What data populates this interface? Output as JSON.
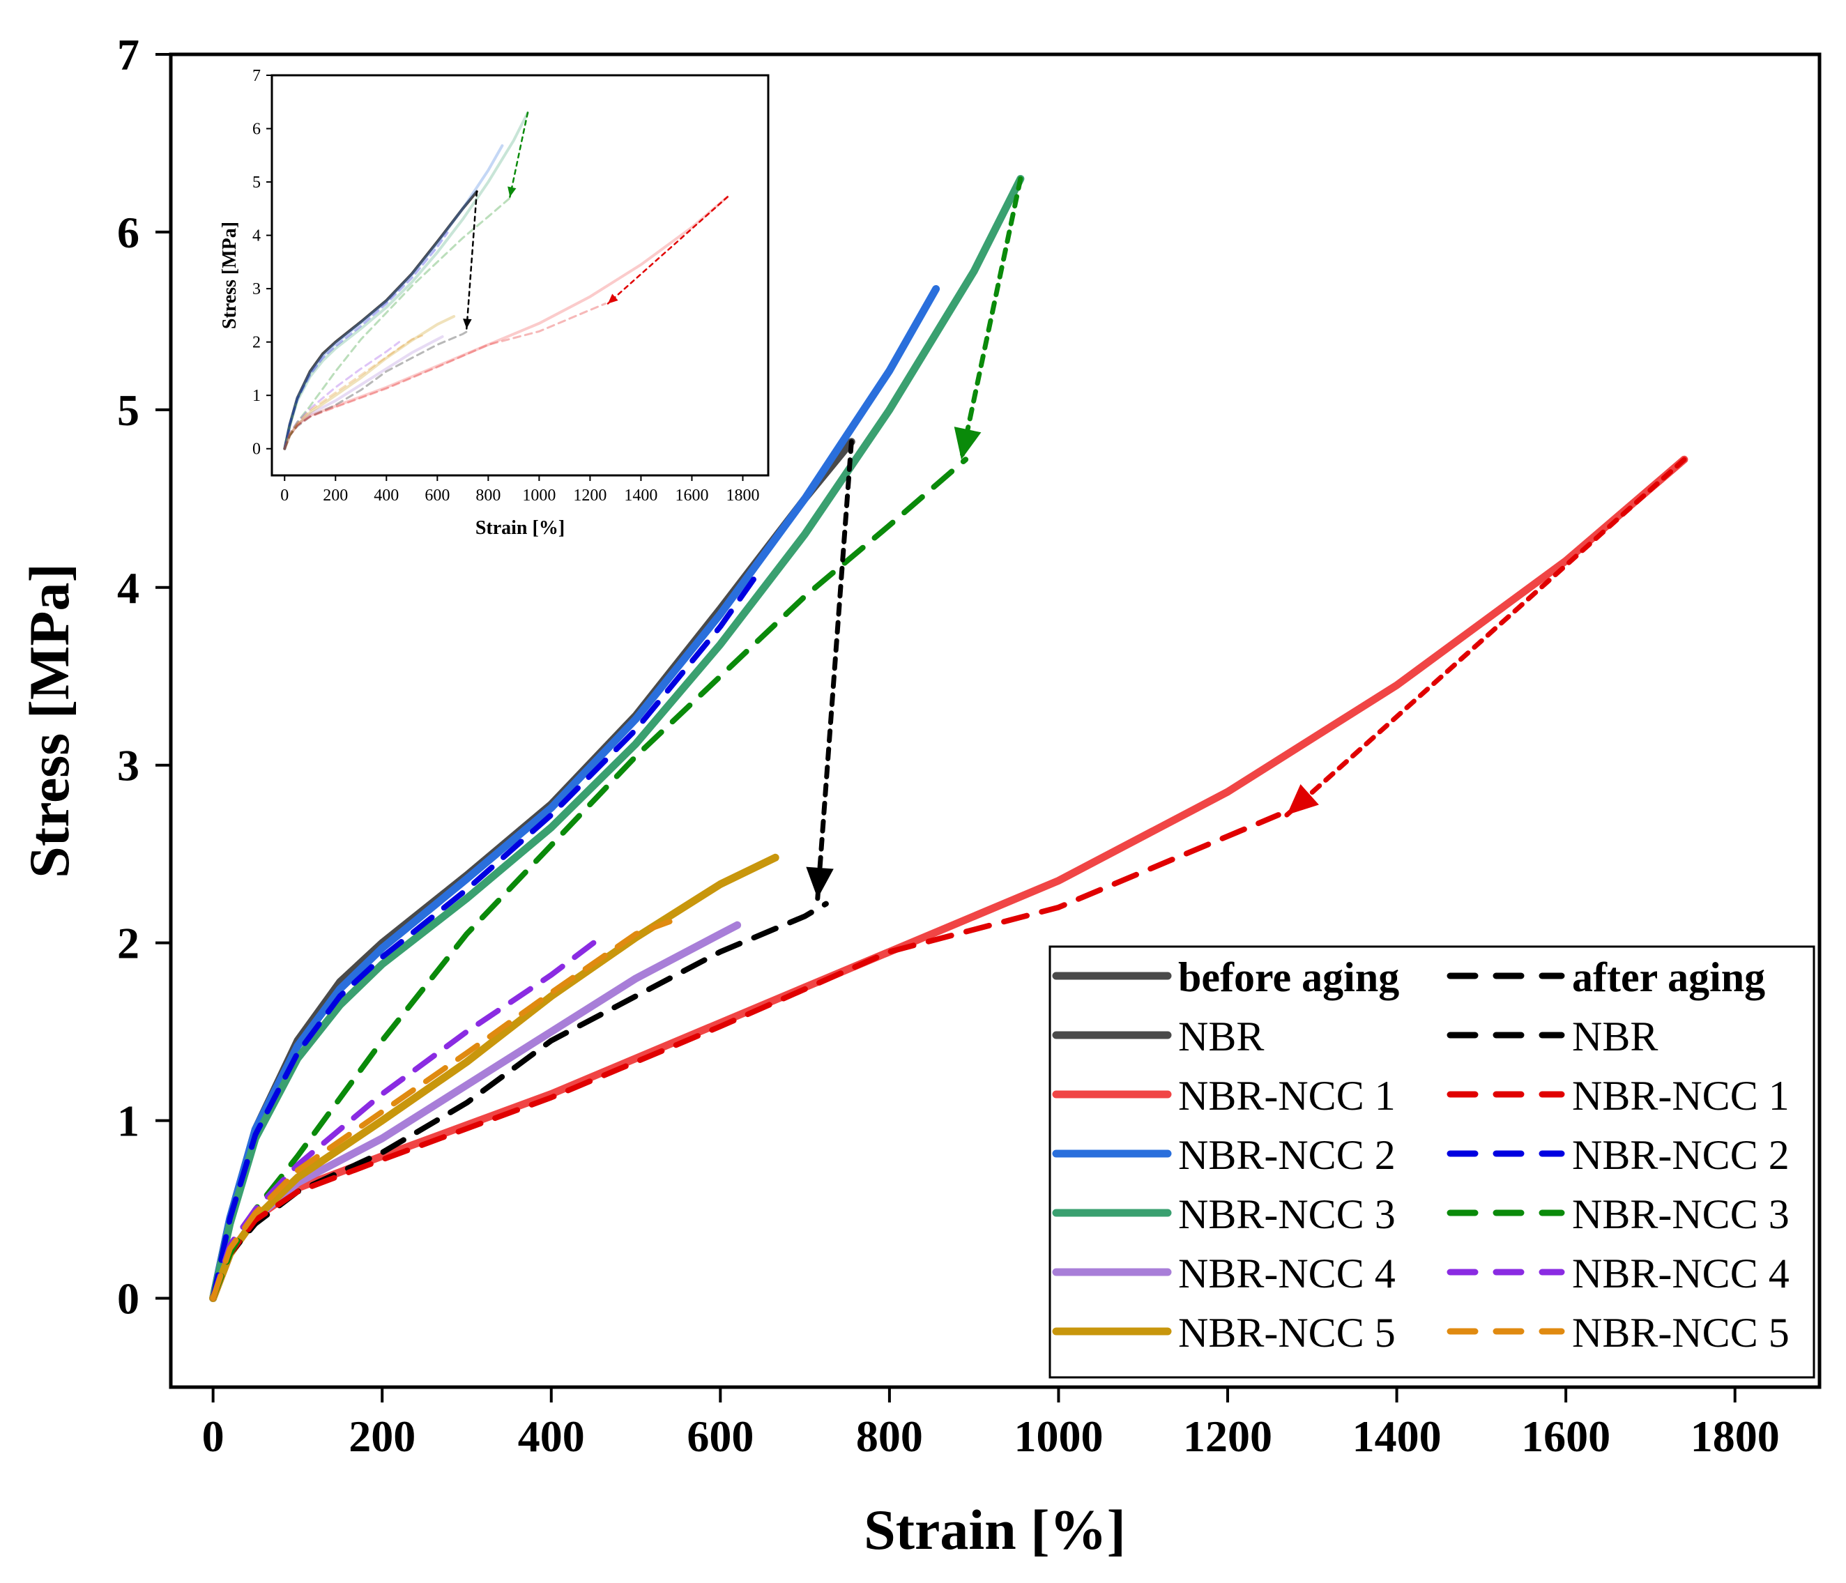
{
  "chart_data": {
    "type": "line",
    "xlabel": "Strain [%]",
    "ylabel": "Stress [MPa]",
    "xlim": [
      -50,
      1900
    ],
    "ylim": [
      -0.5,
      7
    ],
    "xticks": [
      "0",
      "200",
      "400",
      "600",
      "800",
      "1000",
      "1200",
      "1400",
      "1600",
      "1800"
    ],
    "yticks": [
      "0",
      "1",
      "2",
      "3",
      "4",
      "5",
      "6",
      "7"
    ],
    "colors": {
      "NBR_before": "#4a4a4a",
      "NBR_after": "#000000",
      "NCC1_before": "#f04545",
      "NCC1_after": "#e00000",
      "NCC2_before": "#2a6fdc",
      "NCC2_after": "#0000e0",
      "NCC3_before": "#3aa070",
      "NCC3_after": "#0a8a0a",
      "NCC4_before": "#a87ed8",
      "NCC4_after": "#8a2be2",
      "NCC5_before": "#c8960c",
      "NCC5_after": "#e08a10"
    },
    "legend": {
      "placement": "bottom-right",
      "col1_header": "before aging",
      "col2_header": "after aging",
      "col1_items": [
        "NBR",
        "NBR-NCC 1",
        "NBR-NCC 2",
        "NBR-NCC 3",
        "NBR-NCC 4",
        "NBR-NCC 5"
      ],
      "col2_items": [
        "NBR",
        "NBR-NCC 1",
        "NBR-NCC 2",
        "NBR-NCC 3",
        "NBR-NCC 4",
        "NBR-NCC 5"
      ]
    },
    "series": [
      {
        "name": "NBR before aging",
        "key": "NBR_before",
        "style": "solid",
        "x": [
          0,
          20,
          50,
          100,
          150,
          200,
          300,
          400,
          500,
          600,
          700,
          755
        ],
        "y": [
          0,
          0.45,
          0.95,
          1.45,
          1.78,
          2.0,
          2.38,
          2.78,
          3.28,
          3.88,
          4.5,
          4.82
        ]
      },
      {
        "name": "NBR-NCC 1 before aging",
        "key": "NCC1_before",
        "style": "solid",
        "x": [
          0,
          20,
          50,
          100,
          200,
          400,
          600,
          800,
          1000,
          1200,
          1400,
          1600,
          1740
        ],
        "y": [
          0,
          0.25,
          0.45,
          0.62,
          0.8,
          1.15,
          1.55,
          1.95,
          2.35,
          2.85,
          3.45,
          4.15,
          4.72
        ]
      },
      {
        "name": "NBR-NCC 2 before aging",
        "key": "NCC2_before",
        "style": "solid",
        "x": [
          0,
          20,
          50,
          100,
          150,
          200,
          300,
          400,
          500,
          600,
          700,
          800,
          855
        ],
        "y": [
          0,
          0.45,
          0.95,
          1.42,
          1.74,
          1.97,
          2.36,
          2.76,
          3.26,
          3.85,
          4.5,
          5.22,
          5.68
        ]
      },
      {
        "name": "NBR-NCC 3 before aging",
        "key": "NCC3_before",
        "style": "solid",
        "x": [
          0,
          20,
          50,
          100,
          150,
          200,
          300,
          400,
          500,
          600,
          700,
          800,
          900,
          955
        ],
        "y": [
          0,
          0.42,
          0.9,
          1.35,
          1.65,
          1.88,
          2.25,
          2.65,
          3.12,
          3.68,
          4.3,
          5.0,
          5.78,
          6.3
        ]
      },
      {
        "name": "NBR-NCC 4 before aging",
        "key": "NCC4_before",
        "style": "solid",
        "x": [
          0,
          20,
          50,
          100,
          200,
          300,
          400,
          500,
          600,
          620
        ],
        "y": [
          0,
          0.25,
          0.45,
          0.65,
          0.9,
          1.2,
          1.5,
          1.8,
          2.05,
          2.1
        ]
      },
      {
        "name": "NBR-NCC 5 before aging",
        "key": "NCC5_before",
        "style": "solid",
        "x": [
          0,
          20,
          50,
          100,
          200,
          300,
          400,
          500,
          600,
          665
        ],
        "y": [
          0,
          0.25,
          0.45,
          0.68,
          1.0,
          1.33,
          1.7,
          2.03,
          2.33,
          2.48
        ]
      },
      {
        "name": "NBR after aging",
        "key": "NBR_after",
        "style": "dashed",
        "x": [
          0,
          20,
          50,
          100,
          200,
          300,
          400,
          500,
          600,
          700,
          725
        ],
        "y": [
          0,
          0.25,
          0.42,
          0.6,
          0.82,
          1.1,
          1.45,
          1.7,
          1.95,
          2.15,
          2.22
        ]
      },
      {
        "name": "NBR-NCC 1 after aging",
        "key": "NCC1_after",
        "style": "dashed",
        "x": [
          0,
          20,
          50,
          100,
          200,
          400,
          600,
          800,
          1000,
          1100,
          1200,
          1260
        ],
        "y": [
          0,
          0.25,
          0.44,
          0.6,
          0.78,
          1.13,
          1.53,
          1.95,
          2.2,
          2.4,
          2.6,
          2.72
        ]
      },
      {
        "name": "NBR-NCC 2 after aging",
        "key": "NCC2_after",
        "style": "dashed",
        "x": [
          0,
          20,
          50,
          100,
          150,
          200,
          300,
          400,
          500,
          600,
          640
        ],
        "y": [
          0,
          0.45,
          0.92,
          1.38,
          1.7,
          1.92,
          2.3,
          2.72,
          3.2,
          3.78,
          4.05
        ]
      },
      {
        "name": "NBR-NCC 3 after aging",
        "key": "NCC3_after",
        "style": "dashed",
        "x": [
          0,
          20,
          50,
          100,
          200,
          300,
          400,
          500,
          600,
          700,
          800,
          890
        ],
        "y": [
          0,
          0.25,
          0.5,
          0.8,
          1.45,
          2.05,
          2.55,
          3.05,
          3.5,
          3.95,
          4.35,
          4.72
        ]
      },
      {
        "name": "NBR-NCC 4 after aging",
        "key": "NCC4_after",
        "style": "dashed",
        "x": [
          0,
          20,
          50,
          100,
          200,
          300,
          400,
          450
        ],
        "y": [
          0,
          0.3,
          0.5,
          0.75,
          1.15,
          1.5,
          1.82,
          2.0
        ]
      },
      {
        "name": "NBR-NCC 5 after aging",
        "key": "NCC5_after",
        "style": "dashed",
        "x": [
          0,
          20,
          50,
          100,
          200,
          300,
          400,
          500,
          540
        ],
        "y": [
          0,
          0.28,
          0.48,
          0.72,
          1.05,
          1.38,
          1.72,
          2.05,
          2.12
        ]
      }
    ],
    "arrows": [
      {
        "name": "NBR aging arrow",
        "key": "NBR_after",
        "from": [
          755,
          4.82
        ],
        "to": [
          715,
          2.25
        ]
      },
      {
        "name": "NBR-NCC 3 aging arrow",
        "key": "NCC3_after",
        "from": [
          955,
          6.3
        ],
        "to": [
          885,
          4.72
        ]
      },
      {
        "name": "NBR-NCC 1 aging arrow",
        "key": "NCC1_after",
        "from": [
          1740,
          4.72
        ],
        "to": [
          1270,
          2.72
        ]
      }
    ],
    "inset": {
      "xlabel": "Strain [%]",
      "ylabel": "Stress [MPa]",
      "xlim": [
        -50,
        1900
      ],
      "ylim": [
        -0.5,
        7
      ],
      "xticks": [
        "0",
        "200",
        "400",
        "600",
        "800",
        "1000",
        "1200",
        "1400",
        "1600",
        "1800"
      ],
      "yticks": [
        "0",
        "1",
        "2",
        "3",
        "4",
        "5",
        "6",
        "7"
      ]
    }
  }
}
